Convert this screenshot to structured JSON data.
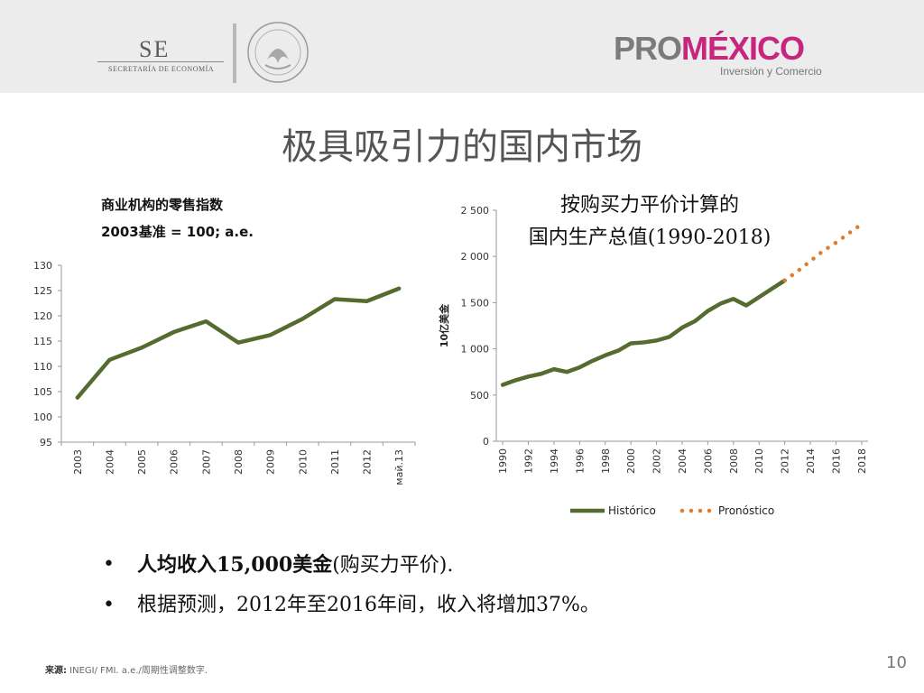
{
  "header": {
    "se_abbr": "SE",
    "se_name": "SECRETARÍA DE ECONOMÍA",
    "promexico_pro": "PRO",
    "promexico_mex": "MÉXICO",
    "promexico_sub": "Inversión y Comercio",
    "colors": {
      "band": "#ececec",
      "pro": "#7b7b7b",
      "mexico_magenta": "#c8267e",
      "mexico_green": "#8ab83c",
      "mexico_teal": "#1aa3a3"
    }
  },
  "title": "极具吸引力的国内市场",
  "charts": {
    "left": {
      "title_line1": "商业机构的零售指数",
      "title_line2": "2003基准 = 100; a.e."
    },
    "right": {
      "title_line1": "按购买力平价计算的",
      "title_line2": "国内生产总值(1990-2018)",
      "legend_historic": "Histórico",
      "legend_forecast": "Pronóstico"
    }
  },
  "chart_data": [
    {
      "type": "line",
      "title": "商业机构的零售指数 2003基准 = 100; a.e.",
      "categories": [
        "2003",
        "2004",
        "2005",
        "2006",
        "2007",
        "2008",
        "2009",
        "2010",
        "2011",
        "2012",
        "май.13"
      ],
      "values": [
        103.8,
        111.3,
        113.7,
        116.8,
        118.9,
        114.7,
        116.2,
        119.4,
        123.3,
        122.9,
        125.4
      ],
      "yticks": [
        "95",
        "100",
        "105",
        "110",
        "115",
        "120",
        "125",
        "130"
      ],
      "ylim": [
        95,
        130
      ],
      "color": "#556b2f",
      "grid": false
    },
    {
      "type": "line",
      "title": "按购买力平价计算的 国内生产总值(1990-2018)",
      "ylabel": "10亿美金",
      "xticks": [
        "1990",
        "1992",
        "1994",
        "1996",
        "1998",
        "2000",
        "2002",
        "2004",
        "2006",
        "2008",
        "2010",
        "2012",
        "2014",
        "2016",
        "2018"
      ],
      "yticks": [
        "0",
        "500",
        "1 000",
        "1 500",
        "2 000",
        "2 500"
      ],
      "ylim": [
        0,
        2500
      ],
      "legend_position": "bottom",
      "series": [
        {
          "name": "Histórico",
          "style": "solid",
          "color": "#556b2f",
          "x": [
            1990,
            1991,
            1992,
            1993,
            1994,
            1995,
            1996,
            1997,
            1998,
            1999,
            2000,
            2001,
            2002,
            2003,
            2004,
            2005,
            2006,
            2007,
            2008,
            2009,
            2010,
            2011,
            2012
          ],
          "values": [
            610,
            660,
            700,
            730,
            780,
            750,
            800,
            870,
            930,
            980,
            1060,
            1070,
            1090,
            1130,
            1230,
            1300,
            1410,
            1490,
            1540,
            1470,
            1560,
            1650,
            1740
          ]
        },
        {
          "name": "Pronóstico",
          "style": "dotted",
          "color": "#e07b28",
          "x": [
            2012,
            2013,
            2014,
            2015,
            2016,
            2017,
            2018
          ],
          "values": [
            1740,
            1840,
            1950,
            2060,
            2150,
            2250,
            2350
          ]
        }
      ]
    }
  ],
  "bullets": {
    "b1_bold": "人均收入15,000美金",
    "b1_rest": "(购买力平价).",
    "b2_a": "根据预测，",
    "b2_b": "2012年至2016年间，收入将增加37%。"
  },
  "footer": {
    "source_label": "来源:",
    "source_text": " INEGI/ FMI. a.e./周期性调整数字.",
    "page_number": "10"
  }
}
